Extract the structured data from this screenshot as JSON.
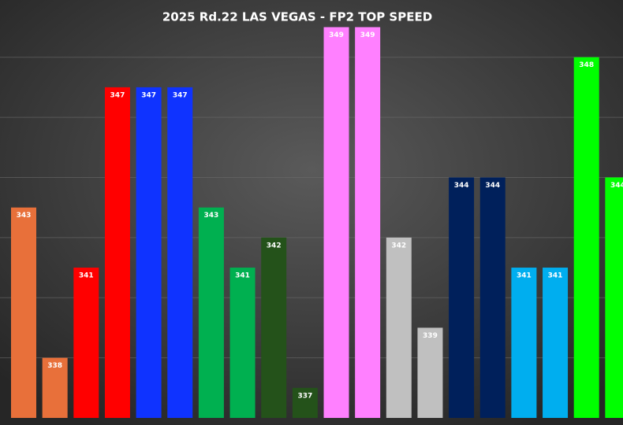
{
  "chart_data": {
    "type": "bar",
    "title": "2025 Rd.22 LAS VEGAS - FP2 TOP SPEED",
    "values": [
      343,
      338,
      341,
      347,
      347,
      347,
      343,
      341,
      342,
      337,
      349,
      349,
      342,
      339,
      344,
      344,
      341,
      341,
      348,
      344
    ],
    "colors": [
      "#e8703a",
      "#e8703a",
      "#ff0000",
      "#ff0000",
      "#0f33ff",
      "#0f33ff",
      "#00b050",
      "#00b050",
      "#24521a",
      "#24521a",
      "#ff80ff",
      "#ff80ff",
      "#c0c0c0",
      "#c0c0c0",
      "#00205b",
      "#00205b",
      "#00aeef",
      "#00aeef",
      "#00ff00",
      "#00ff00"
    ],
    "ylim": [
      336,
      349
    ],
    "yticks": [
      338,
      340,
      342,
      344,
      346,
      348
    ],
    "grid": true,
    "value_labels_shown": true
  }
}
